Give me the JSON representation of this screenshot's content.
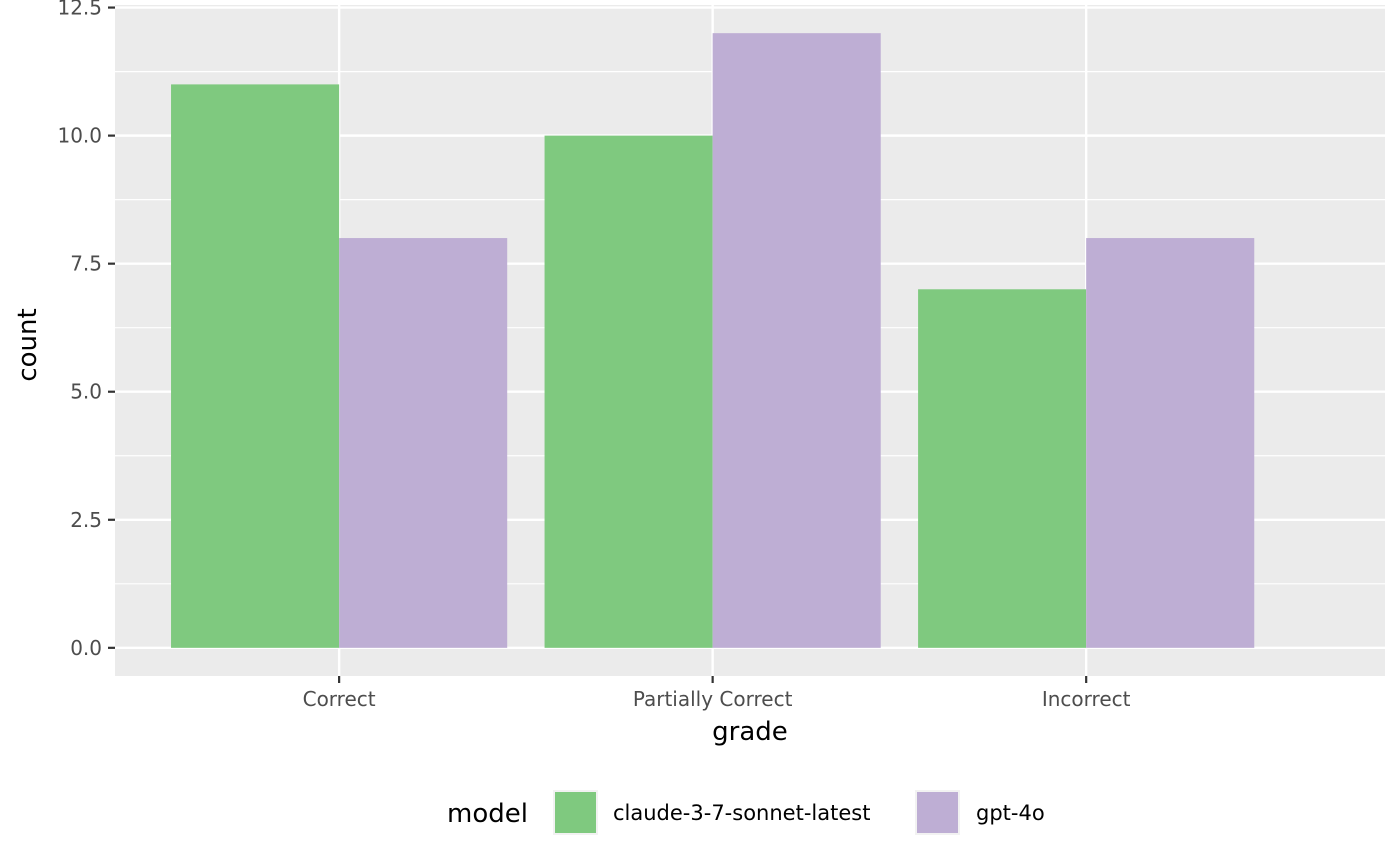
{
  "chart_data": {
    "type": "bar",
    "categories": [
      "Correct",
      "Partially Correct",
      "Incorrect"
    ],
    "series": [
      {
        "name": "claude-3-7-sonnet-latest",
        "color": "#7fc97f",
        "values": [
          11,
          10,
          7
        ]
      },
      {
        "name": "gpt-4o",
        "color": "#beaed4",
        "values": [
          8,
          12,
          8
        ]
      }
    ],
    "xlabel": "grade",
    "ylabel": "count",
    "ylim": [
      -0.55,
      12.55
    ],
    "yticks": [
      0,
      2.5,
      5,
      7.5,
      10,
      12.5
    ],
    "ytick_labels": [
      "0.0",
      "2.5",
      "5.0",
      "7.5",
      "10.0",
      "12.5"
    ],
    "legend": {
      "title": "model",
      "position": "bottom"
    },
    "panel_background": "#ebebeb",
    "grid_color": "#ffffff",
    "grid": true
  }
}
